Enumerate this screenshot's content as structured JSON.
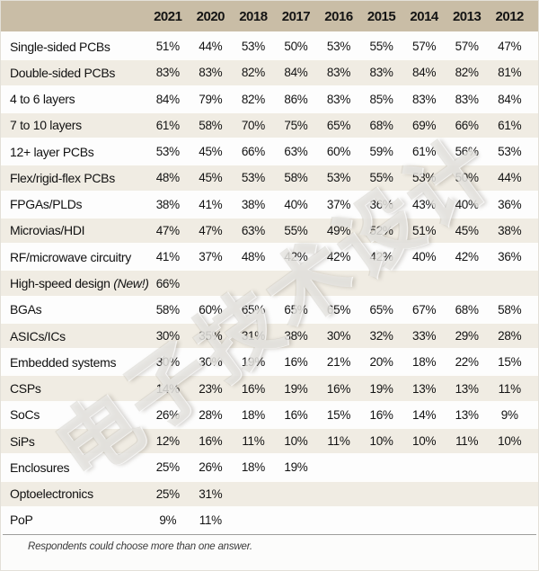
{
  "header": {
    "columns": [
      "2021",
      "2020",
      "2018",
      "2017",
      "2016",
      "2015",
      "2014",
      "2013",
      "2012"
    ]
  },
  "rows": [
    {
      "label": "Single-sided PCBs",
      "note": "",
      "values": [
        "51%",
        "44%",
        "53%",
        "50%",
        "53%",
        "55%",
        "57%",
        "57%",
        "47%"
      ]
    },
    {
      "label": "Double-sided PCBs",
      "note": "",
      "values": [
        "83%",
        "83%",
        "82%",
        "84%",
        "83%",
        "83%",
        "84%",
        "82%",
        "81%"
      ]
    },
    {
      "label": "4 to 6 layers",
      "note": "",
      "values": [
        "84%",
        "79%",
        "82%",
        "86%",
        "83%",
        "85%",
        "83%",
        "83%",
        "84%"
      ]
    },
    {
      "label": "7 to 10 layers",
      "note": "",
      "values": [
        "61%",
        "58%",
        "70%",
        "75%",
        "65%",
        "68%",
        "69%",
        "66%",
        "61%"
      ]
    },
    {
      "label": "12+ layer PCBs",
      "note": "",
      "values": [
        "53%",
        "45%",
        "66%",
        "63%",
        "60%",
        "59%",
        "61%",
        "56%",
        "53%"
      ]
    },
    {
      "label": "Flex/rigid-flex PCBs",
      "note": "",
      "values": [
        "48%",
        "45%",
        "53%",
        "58%",
        "53%",
        "55%",
        "53%",
        "50%",
        "44%"
      ]
    },
    {
      "label": "FPGAs/PLDs",
      "note": "",
      "values": [
        "38%",
        "41%",
        "38%",
        "40%",
        "37%",
        "36%",
        "43%",
        "40%",
        "36%"
      ]
    },
    {
      "label": "Microvias/HDI",
      "note": "",
      "values": [
        "47%",
        "47%",
        "63%",
        "55%",
        "49%",
        "52%",
        "51%",
        "45%",
        "38%"
      ]
    },
    {
      "label": "RF/microwave circuitry",
      "note": "",
      "values": [
        "41%",
        "37%",
        "48%",
        "42%",
        "42%",
        "42%",
        "40%",
        "42%",
        "36%"
      ]
    },
    {
      "label": "High-speed design",
      "note": "(New!)",
      "values": [
        "66%",
        "",
        "",
        "",
        "",
        "",
        "",
        "",
        ""
      ]
    },
    {
      "label": "BGAs",
      "note": "",
      "values": [
        "58%",
        "60%",
        "65%",
        "65%",
        "65%",
        "65%",
        "67%",
        "68%",
        "58%"
      ]
    },
    {
      "label": "ASICs/ICs",
      "note": "",
      "values": [
        "30%",
        "35%",
        "31%",
        "38%",
        "30%",
        "32%",
        "33%",
        "29%",
        "28%"
      ]
    },
    {
      "label": "Embedded systems",
      "note": "",
      "values": [
        "30%",
        "30%",
        "19%",
        "16%",
        "21%",
        "20%",
        "18%",
        "22%",
        "15%"
      ]
    },
    {
      "label": "CSPs",
      "note": "",
      "values": [
        "14%",
        "23%",
        "16%",
        "19%",
        "16%",
        "19%",
        "13%",
        "13%",
        "11%"
      ]
    },
    {
      "label": "SoCs",
      "note": "",
      "values": [
        "26%",
        "28%",
        "18%",
        "16%",
        "15%",
        "16%",
        "14%",
        "13%",
        "9%"
      ]
    },
    {
      "label": "SiPs",
      "note": "",
      "values": [
        "12%",
        "16%",
        "11%",
        "10%",
        "11%",
        "10%",
        "10%",
        "11%",
        "10%"
      ]
    },
    {
      "label": "Enclosures",
      "note": "",
      "values": [
        "25%",
        "26%",
        "18%",
        "19%",
        "",
        "",
        "",
        "",
        ""
      ]
    },
    {
      "label": "Optoelectronics",
      "note": "",
      "values": [
        "25%",
        "31%",
        "",
        "",
        "",
        "",
        "",
        "",
        ""
      ]
    },
    {
      "label": "PoP",
      "note": "",
      "values": [
        "9%",
        "11%",
        "",
        "",
        "",
        "",
        "",
        "",
        ""
      ]
    }
  ],
  "footnote": "Respondents could choose more than one answer.",
  "watermark": "电子技术设计",
  "colors": {
    "header_bg": "#c9bda6",
    "row_bg": "#fdfdfd",
    "row_alt_bg": "#f0ece3",
    "text": "#131313",
    "footnote_rule": "#9e9e9c"
  },
  "chart_data": {
    "type": "table",
    "title": "",
    "columns": [
      "2021",
      "2020",
      "2018",
      "2017",
      "2016",
      "2015",
      "2014",
      "2013",
      "2012"
    ],
    "unit": "percent",
    "rows": [
      {
        "category": "Single-sided PCBs",
        "values": [
          51,
          44,
          53,
          50,
          53,
          55,
          57,
          57,
          47
        ]
      },
      {
        "category": "Double-sided PCBs",
        "values": [
          83,
          83,
          82,
          84,
          83,
          83,
          84,
          82,
          81
        ]
      },
      {
        "category": "4 to 6 layers",
        "values": [
          84,
          79,
          82,
          86,
          83,
          85,
          83,
          83,
          84
        ]
      },
      {
        "category": "7 to 10 layers",
        "values": [
          61,
          58,
          70,
          75,
          65,
          68,
          69,
          66,
          61
        ]
      },
      {
        "category": "12+ layer PCBs",
        "values": [
          53,
          45,
          66,
          63,
          60,
          59,
          61,
          56,
          53
        ]
      },
      {
        "category": "Flex/rigid-flex PCBs",
        "values": [
          48,
          45,
          53,
          58,
          53,
          55,
          53,
          50,
          44
        ]
      },
      {
        "category": "FPGAs/PLDs",
        "values": [
          38,
          41,
          38,
          40,
          37,
          36,
          43,
          40,
          36
        ]
      },
      {
        "category": "Microvias/HDI",
        "values": [
          47,
          47,
          63,
          55,
          49,
          52,
          51,
          45,
          38
        ]
      },
      {
        "category": "RF/microwave circuitry",
        "values": [
          41,
          37,
          48,
          42,
          42,
          42,
          40,
          42,
          36
        ]
      },
      {
        "category": "High-speed design (New!)",
        "values": [
          66,
          null,
          null,
          null,
          null,
          null,
          null,
          null,
          null
        ]
      },
      {
        "category": "BGAs",
        "values": [
          58,
          60,
          65,
          65,
          65,
          65,
          67,
          68,
          58
        ]
      },
      {
        "category": "ASICs/ICs",
        "values": [
          30,
          35,
          31,
          38,
          30,
          32,
          33,
          29,
          28
        ]
      },
      {
        "category": "Embedded systems",
        "values": [
          30,
          30,
          19,
          16,
          21,
          20,
          18,
          22,
          15
        ]
      },
      {
        "category": "CSPs",
        "values": [
          14,
          23,
          16,
          19,
          16,
          19,
          13,
          13,
          11
        ]
      },
      {
        "category": "SoCs",
        "values": [
          26,
          28,
          18,
          16,
          15,
          16,
          14,
          13,
          9
        ]
      },
      {
        "category": "SiPs",
        "values": [
          12,
          16,
          11,
          10,
          11,
          10,
          10,
          11,
          10
        ]
      },
      {
        "category": "Enclosures",
        "values": [
          25,
          26,
          18,
          19,
          null,
          null,
          null,
          null,
          null
        ]
      },
      {
        "category": "Optoelectronics",
        "values": [
          25,
          31,
          null,
          null,
          null,
          null,
          null,
          null,
          null
        ]
      },
      {
        "category": "PoP",
        "values": [
          9,
          11,
          null,
          null,
          null,
          null,
          null,
          null,
          null
        ]
      }
    ],
    "footnote": "Respondents could choose more than one answer."
  }
}
